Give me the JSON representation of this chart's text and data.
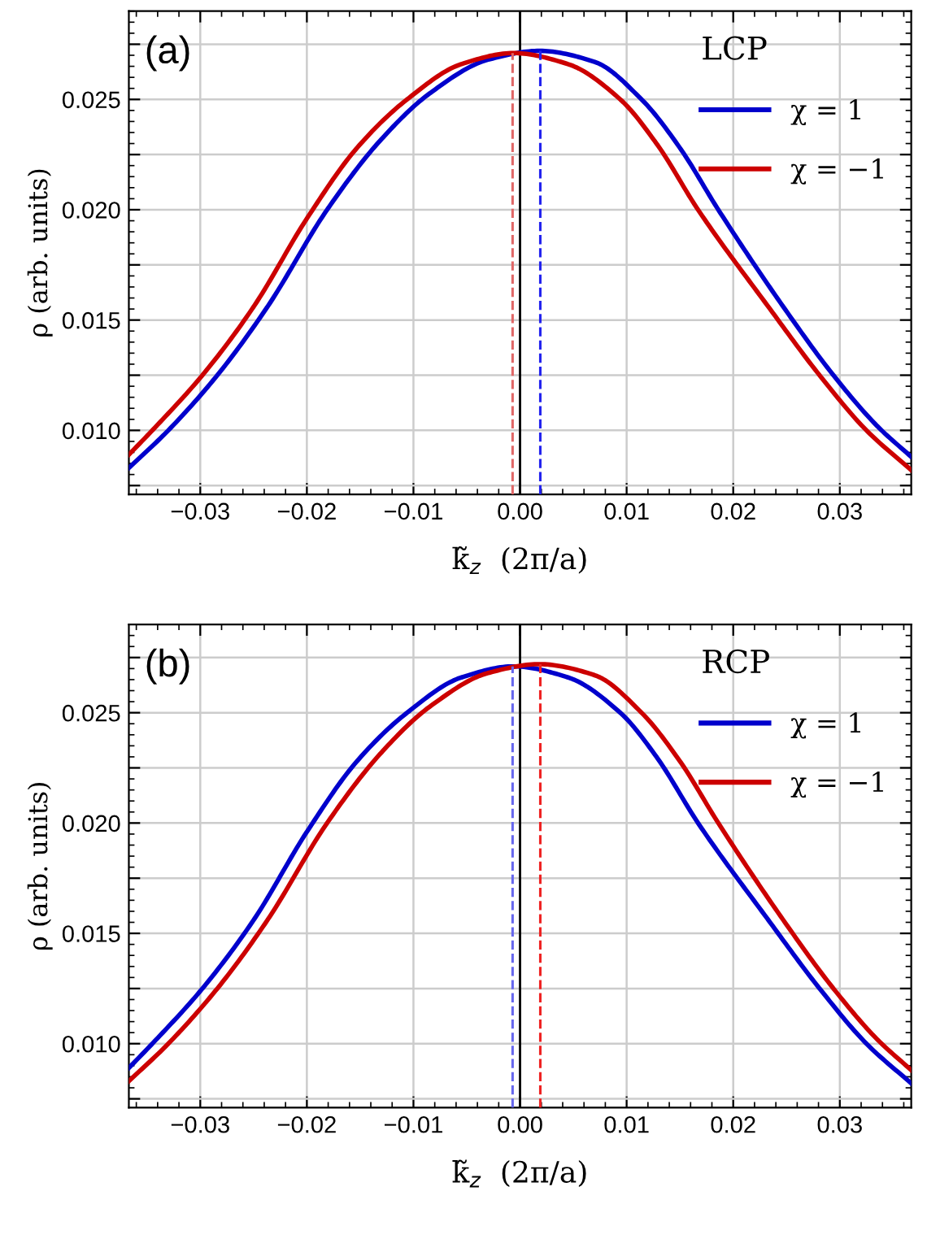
{
  "chart_data": [
    {
      "type": "line",
      "annotations": [
        "(a)"
      ],
      "xlabel": "k̃$_{z}$  (2π/a)",
      "ylabel": "ρ (arb. units)",
      "legend_title": "LCP",
      "legend": "top right",
      "grid": true,
      "line_style": "solid",
      "xlim": [
        -0.0367,
        0.0367
      ],
      "ylim": [
        0.0071,
        0.029
      ],
      "xticks": [
        {
          "value": -0.03,
          "label": "−0.03"
        },
        {
          "value": -0.02,
          "label": "−0.02"
        },
        {
          "value": -0.01,
          "label": "−0.01"
        },
        {
          "value": 0,
          "label": "0.00"
        },
        {
          "value": 0.01,
          "label": "0.01"
        },
        {
          "value": 0.02,
          "label": "0.02"
        },
        {
          "value": 0.03,
          "label": "0.03"
        }
      ],
      "yticks": [
        {
          "value": 0.0075,
          "label": null
        },
        {
          "value": 0.01,
          "label": "0.010"
        },
        {
          "value": 0.0125,
          "label": null
        },
        {
          "value": 0.015,
          "label": "0.015"
        },
        {
          "value": 0.0175,
          "label": null
        },
        {
          "value": 0.02,
          "label": "0.020"
        },
        {
          "value": 0.0225,
          "label": null
        },
        {
          "value": 0.025,
          "label": "0.025"
        },
        {
          "value": 0.0275,
          "label": null
        }
      ],
      "ref_lines": [
        {
          "axis": "x",
          "value": 0,
          "color": "#000000",
          "line_style": "solid"
        }
      ],
      "series": [
        {
          "name": "χ = 1",
          "color": "#0000cc",
          "x": [
            -0.0367,
            -0.033,
            -0.0284,
            -0.0237,
            -0.0181,
            -0.013,
            -0.0084,
            -0.003,
            0.0018,
            0.007,
            0.0114,
            0.015,
            0.0186,
            0.0247,
            0.0294,
            0.0335,
            0.0367
          ],
          "values": [
            0.0083,
            0.01,
            0.0125,
            0.0156,
            0.02,
            0.0232,
            0.0253,
            0.0268,
            0.0272,
            0.0267,
            0.025,
            0.0228,
            0.02,
            0.0156,
            0.0125,
            0.0102,
            0.0088
          ]
        },
        {
          "name": "χ = −1",
          "color": "#cc0000",
          "x": [
            -0.0367,
            -0.0345,
            -0.0298,
            -0.025,
            -0.02,
            -0.0153,
            -0.0106,
            -0.0055,
            -0.0006,
            0.0045,
            0.0094,
            0.0128,
            0.0167,
            0.0233,
            0.0281,
            0.0325,
            0.0367
          ],
          "values": [
            0.0089,
            0.01,
            0.0125,
            0.0156,
            0.0196,
            0.0228,
            0.025,
            0.0266,
            0.0271,
            0.0266,
            0.025,
            0.023,
            0.02,
            0.0156,
            0.0125,
            0.01,
            0.0082
          ]
        },
        {
          "type": "line",
          "color": "#e06666",
          "line_style": "dashed",
          "x": [
            -0.0007,
            -0.0007
          ],
          "values": [
            0.0071,
            0.0271
          ]
        },
        {
          "type": "line",
          "color": "#2222ee",
          "line_style": "dashed",
          "x": [
            0.0019,
            0.0019
          ],
          "values": [
            0.0071,
            0.0272
          ]
        }
      ]
    },
    {
      "type": "line",
      "annotations": [
        "(b)"
      ],
      "xlabel": "k̃$_{z}$  (2π/a)",
      "ylabel": "ρ (arb. units)",
      "legend_title": "RCP",
      "legend": "top right",
      "grid": true,
      "line_style": "solid",
      "xlim": [
        -0.0367,
        0.0367
      ],
      "ylim": [
        0.0071,
        0.029
      ],
      "xticks": [
        {
          "value": -0.03,
          "label": "−0.03"
        },
        {
          "value": -0.02,
          "label": "−0.02"
        },
        {
          "value": -0.01,
          "label": "−0.01"
        },
        {
          "value": 0,
          "label": "0.00"
        },
        {
          "value": 0.01,
          "label": "0.01"
        },
        {
          "value": 0.02,
          "label": "0.02"
        },
        {
          "value": 0.03,
          "label": "0.03"
        }
      ],
      "yticks": [
        {
          "value": 0.0075,
          "label": null
        },
        {
          "value": 0.01,
          "label": "0.010"
        },
        {
          "value": 0.0125,
          "label": null
        },
        {
          "value": 0.015,
          "label": "0.015"
        },
        {
          "value": 0.0175,
          "label": null
        },
        {
          "value": 0.02,
          "label": "0.020"
        },
        {
          "value": 0.0225,
          "label": null
        },
        {
          "value": 0.025,
          "label": "0.025"
        },
        {
          "value": 0.0275,
          "label": null
        }
      ],
      "ref_lines": [
        {
          "axis": "x",
          "value": 0,
          "color": "#000000",
          "line_style": "solid"
        }
      ],
      "series": [
        {
          "name": "χ = 1",
          "color": "#0000cc",
          "x": [
            -0.0367,
            -0.0345,
            -0.0298,
            -0.025,
            -0.02,
            -0.0153,
            -0.0106,
            -0.0055,
            -0.0006,
            0.0045,
            0.0094,
            0.0128,
            0.0167,
            0.0233,
            0.0281,
            0.0325,
            0.0367
          ],
          "values": [
            0.0089,
            0.01,
            0.0125,
            0.0156,
            0.0196,
            0.0228,
            0.025,
            0.0266,
            0.0271,
            0.0266,
            0.025,
            0.023,
            0.02,
            0.0156,
            0.0125,
            0.01,
            0.0082
          ]
        },
        {
          "name": "χ = −1",
          "color": "#cc0000",
          "x": [
            -0.0367,
            -0.033,
            -0.0284,
            -0.0237,
            -0.0181,
            -0.013,
            -0.0084,
            -0.003,
            0.0018,
            0.007,
            0.0114,
            0.015,
            0.0186,
            0.0247,
            0.0294,
            0.0335,
            0.0367
          ],
          "values": [
            0.0083,
            0.01,
            0.0125,
            0.0156,
            0.02,
            0.0232,
            0.0253,
            0.0268,
            0.0272,
            0.0267,
            0.025,
            0.0228,
            0.02,
            0.0156,
            0.0125,
            0.0102,
            0.0088
          ]
        },
        {
          "type": "line",
          "color": "#6666ee",
          "line_style": "dashed",
          "x": [
            -0.0007,
            -0.0007
          ],
          "values": [
            0.0071,
            0.0271
          ]
        },
        {
          "type": "line",
          "color": "#ee2222",
          "line_style": "dashed",
          "x": [
            0.0019,
            0.0019
          ],
          "values": [
            0.0071,
            0.0272
          ]
        }
      ]
    }
  ]
}
